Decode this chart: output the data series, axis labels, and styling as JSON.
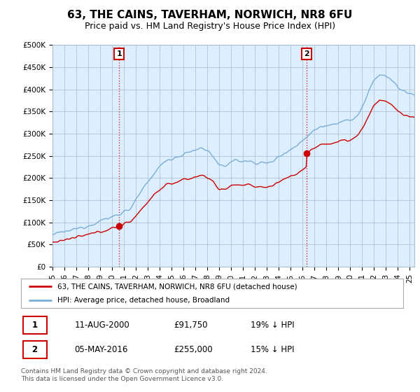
{
  "title": "63, THE CAINS, TAVERHAM, NORWICH, NR8 6FU",
  "subtitle": "Price paid vs. HM Land Registry's House Price Index (HPI)",
  "ylabel_ticks": [
    "£0",
    "£50K",
    "£100K",
    "£150K",
    "£200K",
    "£250K",
    "£300K",
    "£350K",
    "£400K",
    "£450K",
    "£500K"
  ],
  "ytick_vals": [
    0,
    50000,
    100000,
    150000,
    200000,
    250000,
    300000,
    350000,
    400000,
    450000,
    500000
  ],
  "ylim": [
    0,
    500000
  ],
  "xlim_start": 1995.0,
  "xlim_end": 2025.4,
  "xtick_years": [
    1995,
    1996,
    1997,
    1998,
    1999,
    2000,
    2001,
    2002,
    2003,
    2004,
    2005,
    2006,
    2007,
    2008,
    2009,
    2010,
    2011,
    2012,
    2013,
    2014,
    2015,
    2016,
    2017,
    2018,
    2019,
    2020,
    2021,
    2022,
    2023,
    2024,
    2025
  ],
  "xtick_labels": [
    "95",
    "96",
    "97",
    "98",
    "99",
    "00",
    "01",
    "02",
    "03",
    "04",
    "05",
    "06",
    "07",
    "08",
    "09",
    "10",
    "11",
    "12",
    "13",
    "14",
    "15",
    "16",
    "17",
    "18",
    "19",
    "20",
    "21",
    "22",
    "23",
    "24",
    "25"
  ],
  "sale1_x": 2000.6,
  "sale1_y": 91750,
  "sale1_label": "1",
  "sale2_x": 2016.35,
  "sale2_y": 255000,
  "sale2_label": "2",
  "red_color": "#cc0000",
  "blue_color": "#7aaed6",
  "plot_bg_color": "#ddeeff",
  "marker_box_color": "#cc0000",
  "legend_line1": "63, THE CAINS, TAVERHAM, NORWICH, NR8 6FU (detached house)",
  "legend_line2": "HPI: Average price, detached house, Broadland",
  "table_row1": [
    "1",
    "11-AUG-2000",
    "£91,750",
    "19% ↓ HPI"
  ],
  "table_row2": [
    "2",
    "05-MAY-2016",
    "£255,000",
    "15% ↓ HPI"
  ],
  "footer": "Contains HM Land Registry data © Crown copyright and database right 2024.\nThis data is licensed under the Open Government Licence v3.0.",
  "bg_color": "#ffffff",
  "grid_color": "#aabbcc",
  "title_fontsize": 11,
  "subtitle_fontsize": 9,
  "tick_fontsize": 7.5
}
